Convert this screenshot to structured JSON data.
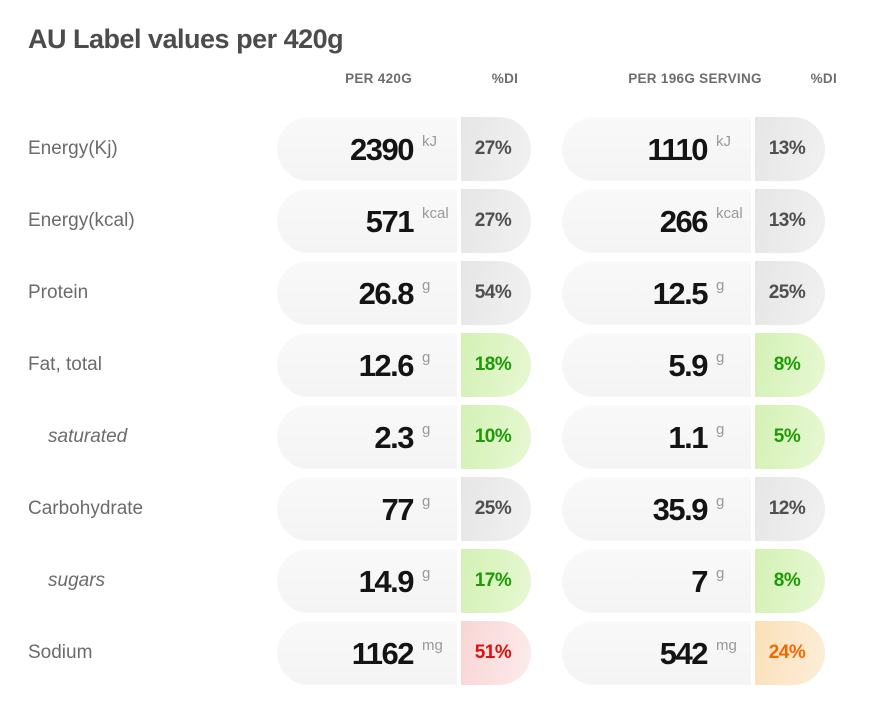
{
  "title": "AU Label values per 420g",
  "header": {
    "col_total": "PER 420G",
    "col_total_di": "%DI",
    "col_serving": "PER 196G SERVING",
    "col_serving_di": "%DI"
  },
  "rows": [
    {
      "label": "Energy(Kj)",
      "indent": false,
      "total": {
        "value": "2390",
        "unit": "kJ",
        "di": "27%",
        "tone": "gray"
      },
      "serving": {
        "value": "1110",
        "unit": "kJ",
        "di": "13%",
        "tone": "gray"
      }
    },
    {
      "label": "Energy(kcal)",
      "indent": false,
      "total": {
        "value": "571",
        "unit": "kcal",
        "di": "27%",
        "tone": "gray"
      },
      "serving": {
        "value": "266",
        "unit": "kcal",
        "di": "13%",
        "tone": "gray"
      }
    },
    {
      "label": "Protein",
      "indent": false,
      "total": {
        "value": "26.8",
        "unit": "g",
        "di": "54%",
        "tone": "gray"
      },
      "serving": {
        "value": "12.5",
        "unit": "g",
        "di": "25%",
        "tone": "gray"
      }
    },
    {
      "label": "Fat, total",
      "indent": false,
      "total": {
        "value": "12.6",
        "unit": "g",
        "di": "18%",
        "tone": "green"
      },
      "serving": {
        "value": "5.9",
        "unit": "g",
        "di": "8%",
        "tone": "green"
      }
    },
    {
      "label": "saturated",
      "indent": true,
      "total": {
        "value": "2.3",
        "unit": "g",
        "di": "10%",
        "tone": "green"
      },
      "serving": {
        "value": "1.1",
        "unit": "g",
        "di": "5%",
        "tone": "green"
      }
    },
    {
      "label": "Carbohydrate",
      "indent": false,
      "total": {
        "value": "77",
        "unit": "g",
        "di": "25%",
        "tone": "gray"
      },
      "serving": {
        "value": "35.9",
        "unit": "g",
        "di": "12%",
        "tone": "gray"
      }
    },
    {
      "label": "sugars",
      "indent": true,
      "total": {
        "value": "14.9",
        "unit": "g",
        "di": "17%",
        "tone": "green"
      },
      "serving": {
        "value": "7",
        "unit": "g",
        "di": "8%",
        "tone": "green"
      }
    },
    {
      "label": "Sodium",
      "indent": false,
      "total": {
        "value": "1162",
        "unit": "mg",
        "di": "51%",
        "tone": "red"
      },
      "serving": {
        "value": "542",
        "unit": "mg",
        "di": "24%",
        "tone": "orange"
      }
    }
  ],
  "colors": {
    "title_text": "#4c4c4c",
    "label_text": "#6b6b6b",
    "header_text": "#6d6d6d",
    "value_text": "#141414",
    "unit_text": "#999999",
    "pill_bg": "#f7f7f7",
    "badge_tones": {
      "gray": {
        "text": "#4f4f4f",
        "bg_start": "#e6e6e6",
        "bg_end": "#f1f1f1"
      },
      "green": {
        "text": "#1b9b04",
        "bg_start": "#d4f1b5",
        "bg_end": "#e7f8d3"
      },
      "red": {
        "text": "#dd1111",
        "bg_start": "#f9d5d5",
        "bg_end": "#fdebeb"
      },
      "orange": {
        "text": "#fa6400",
        "bg_start": "#fae0b8",
        "bg_end": "#fdeeda"
      }
    }
  }
}
